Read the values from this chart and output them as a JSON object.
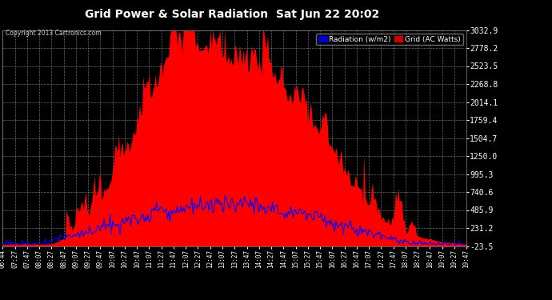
{
  "title": "Grid Power & Solar Radiation  Sat Jun 22 20:02",
  "copyright": "Copyright 2013 Cartronics.com",
  "legend_radiation": "Radiation (w/m2)",
  "legend_grid": "Grid (AC Watts)",
  "ymin": -23.5,
  "ymax": 3032.9,
  "yticks": [
    3032.9,
    2778.2,
    2523.5,
    2268.8,
    2014.1,
    1759.4,
    1504.7,
    1250.0,
    995.3,
    740.6,
    485.9,
    231.2,
    -23.5
  ],
  "background_color": "#000000",
  "plot_bg_color": "#000000",
  "grid_color": "#aaaaaa",
  "title_color": "#ffffff",
  "tick_color": "#ffffff",
  "radiation_color": "#0000ff",
  "grid_ac_color": "#ff0000",
  "xtick_labels": [
    "06:44",
    "07:27",
    "07:47",
    "08:07",
    "08:27",
    "08:47",
    "09:07",
    "09:27",
    "09:47",
    "10:07",
    "10:27",
    "10:47",
    "11:07",
    "11:27",
    "11:47",
    "12:07",
    "12:27",
    "12:47",
    "13:07",
    "13:27",
    "13:47",
    "14:07",
    "14:27",
    "14:47",
    "15:07",
    "15:27",
    "15:47",
    "16:07",
    "16:27",
    "16:47",
    "17:07",
    "17:27",
    "17:47",
    "18:07",
    "18:27",
    "18:47",
    "19:07",
    "19:27",
    "19:47"
  ]
}
